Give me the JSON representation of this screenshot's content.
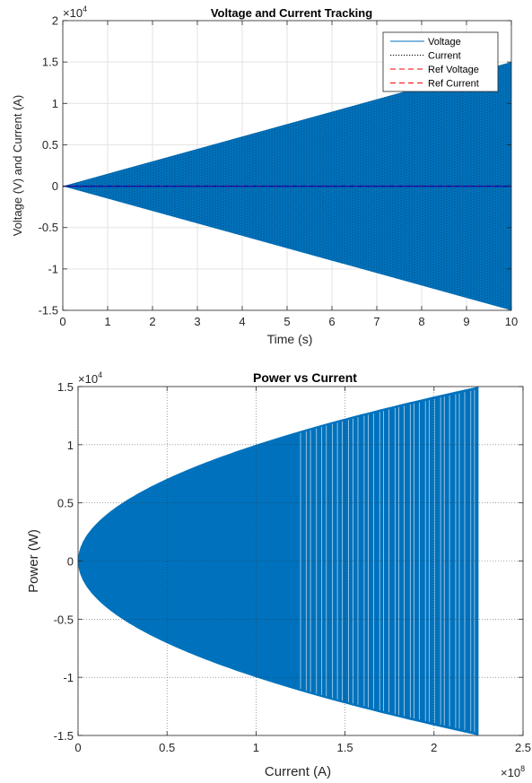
{
  "chart_data": [
    {
      "type": "line",
      "title": "Voltage and Current Tracking",
      "xlabel": "Time (s)",
      "ylabel": "Voltage (V) and Current (A)",
      "xlim": [
        0,
        10
      ],
      "ylim": [
        -1.5,
        2
      ],
      "y_multiplier": "×10",
      "y_exponent": "4",
      "xticks": [
        "0",
        "1",
        "2",
        "3",
        "4",
        "5",
        "6",
        "7",
        "8",
        "9",
        "10"
      ],
      "yticks": [
        "-1.5",
        "-1",
        "-0.5",
        "0",
        "0.5",
        "1",
        "1.5",
        "2"
      ],
      "grid": true,
      "legend_position": "top-right",
      "series": [
        {
          "name": "Voltage",
          "style": "solid",
          "color": "#0072BD",
          "envelope_x": [
            0,
            10
          ],
          "envelope_y": [
            0,
            1.5
          ],
          "shape": "oscillation with linearly growing amplitude"
        },
        {
          "name": "Current",
          "style": "dotted",
          "color": "#000000",
          "envelope_x": [
            0,
            10
          ],
          "envelope_y": [
            0,
            1.5
          ],
          "shape": "oscillation with linearly growing amplitude"
        },
        {
          "name": "Ref Voltage",
          "style": "dashed",
          "color": "#FF0000",
          "x": [
            0,
            10
          ],
          "y": [
            0,
            0
          ]
        },
        {
          "name": "Ref Current",
          "style": "dashed",
          "color": "#FF0000",
          "x": [
            0,
            10
          ],
          "y": [
            0,
            0
          ]
        }
      ]
    },
    {
      "type": "line",
      "title": "Power vs Current",
      "xlabel": "Current (A)",
      "ylabel": "Power (W)",
      "xlim": [
        0,
        2.5
      ],
      "ylim": [
        -1.5,
        1.5
      ],
      "x_multiplier": "×10",
      "x_exponent": "8",
      "y_multiplier": "×10",
      "y_exponent": "4",
      "xticks": [
        "0",
        "0.5",
        "1",
        "1.5",
        "2",
        "2.5"
      ],
      "yticks": [
        "-1.5",
        "-1",
        "-0.5",
        "0",
        "0.5",
        "1",
        "1.5"
      ],
      "grid": true,
      "series": [
        {
          "color": "#0072BD",
          "envelope": "power = ±sqrt(current) bound",
          "x_max": 2.25,
          "y_at_x_max": 1.5
        }
      ]
    }
  ]
}
